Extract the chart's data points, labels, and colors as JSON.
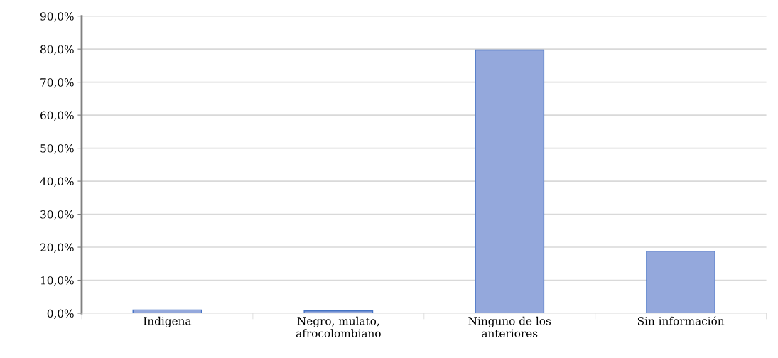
{
  "chart_data": {
    "type": "bar",
    "categories": [
      "Indigena",
      "Negro, mulato,\nafrocolombiano",
      "Ninguno de los\nanteriores",
      "Sin información"
    ],
    "values": [
      1.0,
      0.7,
      79.7,
      18.8
    ],
    "color": "#94a8dc",
    "ylim": [
      0,
      90
    ],
    "yticks": [
      {
        "value": 0,
        "label": "0,0%"
      },
      {
        "value": 10,
        "label": "10,0%"
      },
      {
        "value": 20,
        "label": "20,0%"
      },
      {
        "value": 30,
        "label": "30,0%"
      },
      {
        "value": 40,
        "label": "40,0%"
      },
      {
        "value": 50,
        "label": "50,0%"
      },
      {
        "value": 60,
        "label": "60,0%"
      },
      {
        "value": 70,
        "label": "70,0%"
      },
      {
        "value": 80,
        "label": "80,0%"
      },
      {
        "value": 90,
        "label": "90,0%"
      }
    ],
    "grid": "y",
    "legend": false
  }
}
